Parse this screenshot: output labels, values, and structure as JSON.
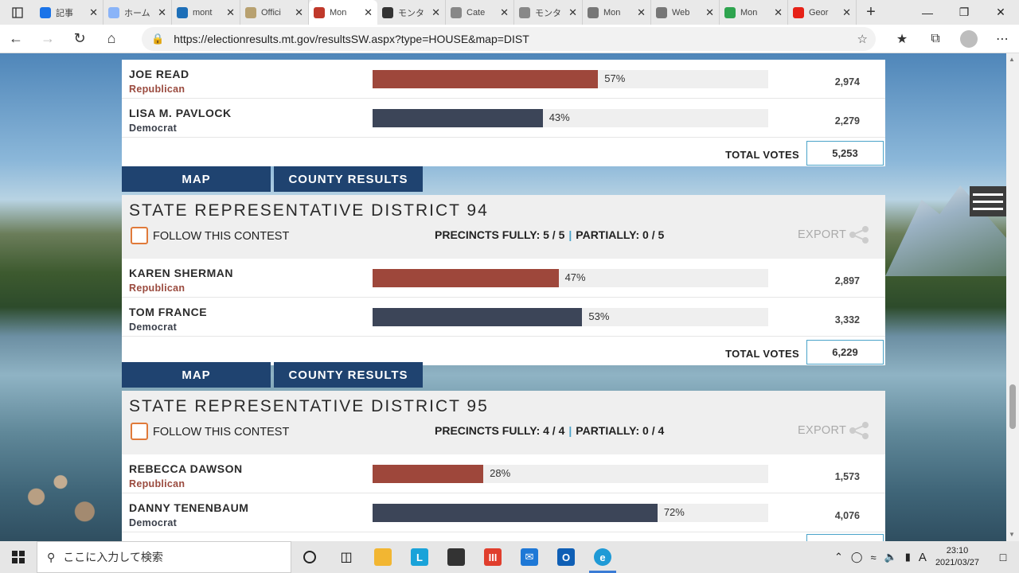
{
  "browser": {
    "tabs": [
      {
        "label": "記事",
        "icon": "edit-icon",
        "color": "#1a73e8"
      },
      {
        "label": "ホーム",
        "icon": "twitter-icon",
        "color": "#8ab4f8"
      },
      {
        "label": "mont",
        "icon": "bing-icon",
        "color": "#1d6fb8"
      },
      {
        "label": "Offici",
        "icon": "seal-icon",
        "color": "#b8a170"
      },
      {
        "label": "Mon",
        "icon": "election-check-icon",
        "color": "#c0392b",
        "active": true
      },
      {
        "label": "モンタ",
        "icon": "wikipedia-icon",
        "color": "#333333"
      },
      {
        "label": "Cate",
        "icon": "wikipedia-icon",
        "color": "#888888"
      },
      {
        "label": "モンタ",
        "icon": "wikipedia-icon",
        "color": "#888888"
      },
      {
        "label": "Mon",
        "icon": "page-icon",
        "color": "#777777"
      },
      {
        "label": "Web",
        "icon": "page-icon",
        "color": "#777777"
      },
      {
        "label": "Mon",
        "icon": "play-icon",
        "color": "#2ea44f"
      },
      {
        "label": "Geor",
        "icon": "youtube-icon",
        "color": "#e62117"
      }
    ],
    "url": "https://electionresults.mt.gov/resultsSW.aspx?type=HOUSE&map=DIST"
  },
  "top_contest": {
    "candidates": [
      {
        "name": "JOE READ",
        "party": "Republican",
        "pct": "57%",
        "pct_value": 57,
        "votes": "2,974"
      },
      {
        "name": "LISA M. PAVLOCK",
        "party": "Democrat",
        "pct": "43%",
        "pct_value": 43,
        "votes": "2,279"
      }
    ],
    "total_label": "TOTAL VOTES",
    "total_votes": "5,253"
  },
  "buttons": {
    "map": "MAP",
    "county": "COUNTY RESULTS"
  },
  "contest_94": {
    "title": "STATE REPRESENTATIVE DISTRICT 94",
    "follow": "FOLLOW THIS CONTEST",
    "precincts_fully": "PRECINCTS FULLY: 5 / 5",
    "sep": "|",
    "precincts_partially": "PARTIALLY: 0 / 5",
    "export": "EXPORT",
    "candidates": [
      {
        "name": "KAREN SHERMAN",
        "party": "Republican",
        "pct": "47%",
        "pct_value": 47,
        "votes": "2,897"
      },
      {
        "name": "TOM FRANCE",
        "party": "Democrat",
        "pct": "53%",
        "pct_value": 53,
        "votes": "3,332"
      }
    ],
    "total_label": "TOTAL VOTES",
    "total_votes": "6,229"
  },
  "contest_95": {
    "title": "STATE REPRESENTATIVE DISTRICT 95",
    "follow": "FOLLOW THIS CONTEST",
    "precincts_fully": "PRECINCTS FULLY: 4 / 4",
    "sep": "|",
    "precincts_partially": "PARTIALLY: 0 / 4",
    "export": "EXPORT",
    "candidates": [
      {
        "name": "REBECCA DAWSON",
        "party": "Republican",
        "pct": "28%",
        "pct_value": 28,
        "votes": "1,573"
      },
      {
        "name": "DANNY TENENBAUM",
        "party": "Democrat",
        "pct": "72%",
        "pct_value": 72,
        "votes": "4,076"
      }
    ]
  },
  "colors": {
    "republican": "#9e473b",
    "democrat": "#3c4558",
    "navy": "#1f4370",
    "accent": "#4aa3c9"
  },
  "taskbar": {
    "search_placeholder": "ここに入力して検索",
    "time": "23:10",
    "date": "2021/03/27",
    "ime": "A"
  }
}
